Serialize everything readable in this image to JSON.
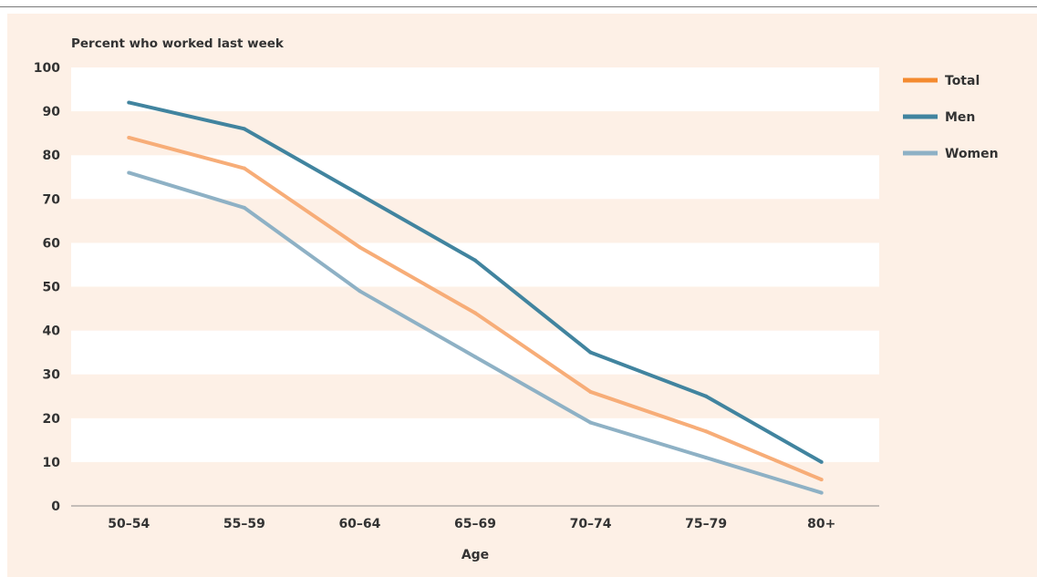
{
  "chart_data": {
    "type": "line",
    "ylabel": "Percent who worked last week",
    "xlabel": "Age",
    "categories": [
      "50–54",
      "55–59",
      "60–64",
      "65–69",
      "70–74",
      "75–79",
      "80+"
    ],
    "ylim": [
      0,
      100
    ],
    "yticks": [
      0,
      10,
      20,
      30,
      40,
      50,
      60,
      70,
      80,
      90,
      100
    ],
    "series": [
      {
        "name": "Total",
        "color": "#f7ad78",
        "legend_color": "#f48a2f",
        "values": [
          84,
          77,
          59,
          44,
          26,
          17,
          6
        ]
      },
      {
        "name": "Men",
        "color": "#41849f",
        "legend_color": "#41849f",
        "values": [
          92,
          86,
          71,
          56,
          35,
          25,
          10
        ]
      },
      {
        "name": "Women",
        "color": "#8eb1c5",
        "legend_color": "#8eb1c5",
        "values": [
          76,
          68,
          49,
          34,
          19,
          11,
          3
        ]
      }
    ],
    "grid": "alternating horizontal bands",
    "legend": "top-right",
    "colors": {
      "band_light": "#ffffff",
      "band_tint": "#fdf0e6",
      "axis": "#8a8a8a"
    }
  }
}
